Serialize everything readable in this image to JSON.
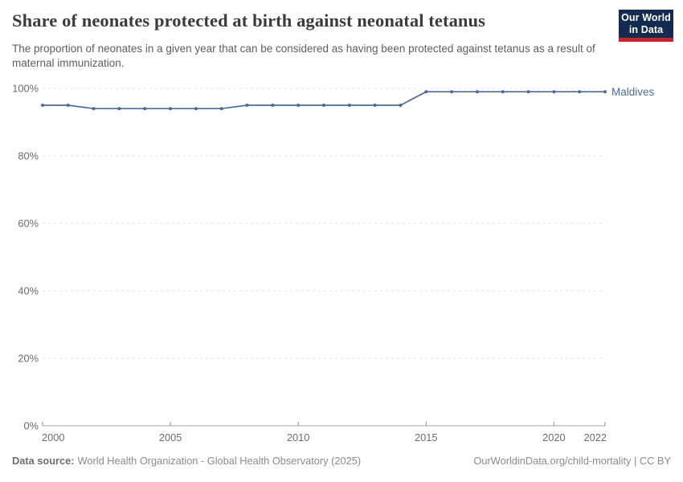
{
  "header": {
    "title": "Share of neonates protected at birth against neonatal tetanus",
    "subtitle": "The proportion of neonates in a given year that can be considered as having been protected against tetanus as a result of maternal immunization.",
    "logo": {
      "line1": "Our World",
      "line2": "in Data"
    }
  },
  "chart_data": {
    "type": "line",
    "title": "Share of neonates protected at birth against neonatal tetanus",
    "x": [
      2000,
      2001,
      2002,
      2003,
      2004,
      2005,
      2006,
      2007,
      2008,
      2009,
      2010,
      2011,
      2012,
      2013,
      2014,
      2015,
      2016,
      2017,
      2018,
      2019,
      2020,
      2021,
      2022
    ],
    "series": [
      {
        "name": "Maldives",
        "color": "#4c6a9c",
        "values": [
          95,
          95,
          94,
          94,
          94,
          94,
          94,
          94,
          95,
          95,
          95,
          95,
          95,
          95,
          95,
          99,
          99,
          99,
          99,
          99,
          99,
          99,
          99
        ]
      }
    ],
    "xlim": [
      2000,
      2022
    ],
    "ylim": [
      0,
      100
    ],
    "yticks": [
      0,
      20,
      40,
      60,
      80,
      100
    ],
    "ytick_suffix": "%",
    "xticks": [
      2000,
      2005,
      2010,
      2015,
      2020,
      2022
    ],
    "grid": "horizontal-dashed",
    "legend": "line-end-label",
    "xlabel": "",
    "ylabel": ""
  },
  "colors": {
    "line": "#4c6a9c",
    "grid": "#d9d9d9",
    "axis": "#a3a3a3",
    "tick": "#8f8f8f",
    "logo_navy": "#132b4e",
    "logo_red": "#c7252c"
  },
  "footer": {
    "source_label": "Data source:",
    "source_text": "World Health Organization - Global Health Observatory (2025)",
    "credit": "OurWorldinData.org/child-mortality | CC BY"
  }
}
